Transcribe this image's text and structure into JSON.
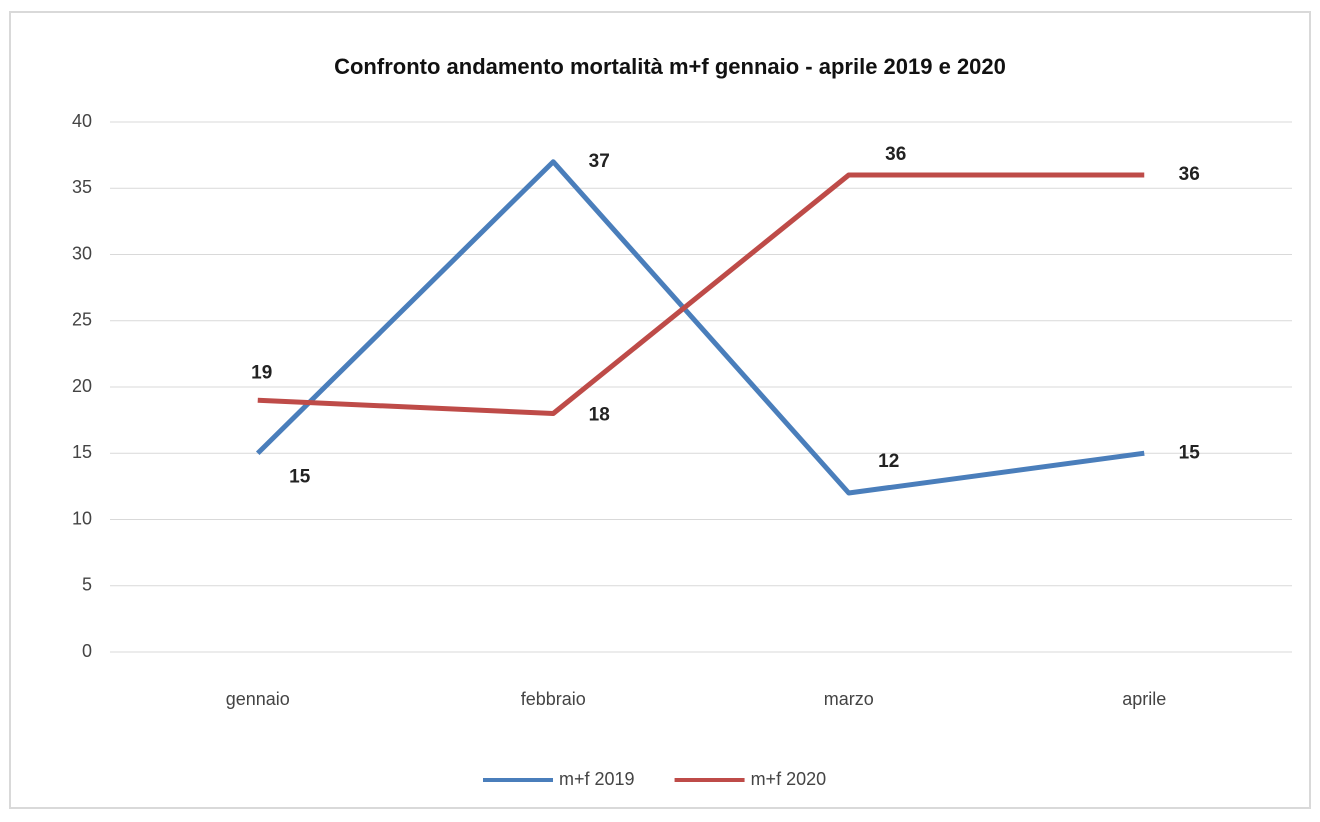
{
  "chart_data": {
    "type": "line",
    "title": "Confronto andamento mortalità m+f gennaio  - aprile 2019 e 2020",
    "categories": [
      "gennaio",
      "febbraio",
      "marzo",
      "aprile"
    ],
    "series": [
      {
        "name": "m+f 2019",
        "color": "#4a7ebb",
        "values": [
          15,
          37,
          12,
          15
        ]
      },
      {
        "name": "m+f 2020",
        "color": "#be4b48",
        "values": [
          19,
          18,
          36,
          36
        ]
      }
    ],
    "ylim": [
      0,
      40
    ],
    "yticks": [
      0,
      5,
      10,
      15,
      20,
      25,
      30,
      35,
      40
    ],
    "grid": true,
    "legend": "bottom"
  }
}
